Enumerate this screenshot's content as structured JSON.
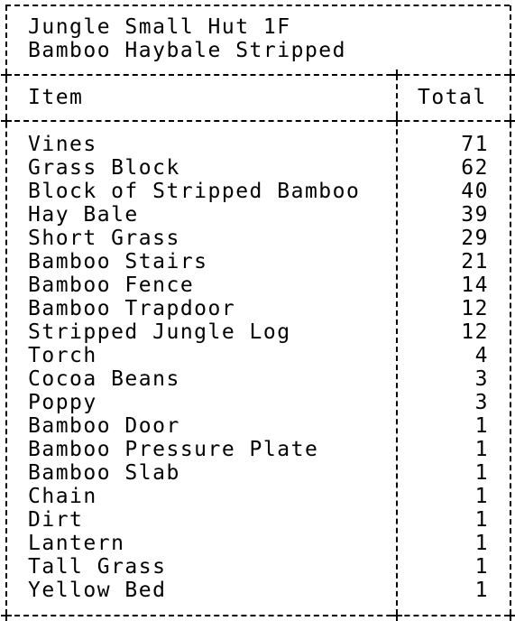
{
  "title_lines": [
    "Jungle Small Hut 1F",
    "Bamboo Haybale Stripped"
  ],
  "table": {
    "columns": [
      "Item",
      "Total"
    ],
    "rows": [
      {
        "item": "Vines",
        "total": "71"
      },
      {
        "item": "Grass Block",
        "total": "62"
      },
      {
        "item": "Block of Stripped Bamboo",
        "total": "40"
      },
      {
        "item": "Hay Bale",
        "total": "39"
      },
      {
        "item": "Short Grass",
        "total": "29"
      },
      {
        "item": "Bamboo Stairs",
        "total": "21"
      },
      {
        "item": "Bamboo Fence",
        "total": "14"
      },
      {
        "item": "Bamboo Trapdoor",
        "total": "12"
      },
      {
        "item": "Stripped Jungle Log",
        "total": "12"
      },
      {
        "item": "Torch",
        "total": "4"
      },
      {
        "item": "Cocoa Beans",
        "total": "3"
      },
      {
        "item": "Poppy",
        "total": "3"
      },
      {
        "item": "Bamboo Door",
        "total": "1"
      },
      {
        "item": "Bamboo Pressure Plate",
        "total": "1"
      },
      {
        "item": "Bamboo Slab",
        "total": "1"
      },
      {
        "item": "Chain",
        "total": "1"
      },
      {
        "item": "Dirt",
        "total": "1"
      },
      {
        "item": "Lantern",
        "total": "1"
      },
      {
        "item": "Tall Grass",
        "total": "1"
      },
      {
        "item": "Yellow Bed",
        "total": "1"
      }
    ]
  }
}
